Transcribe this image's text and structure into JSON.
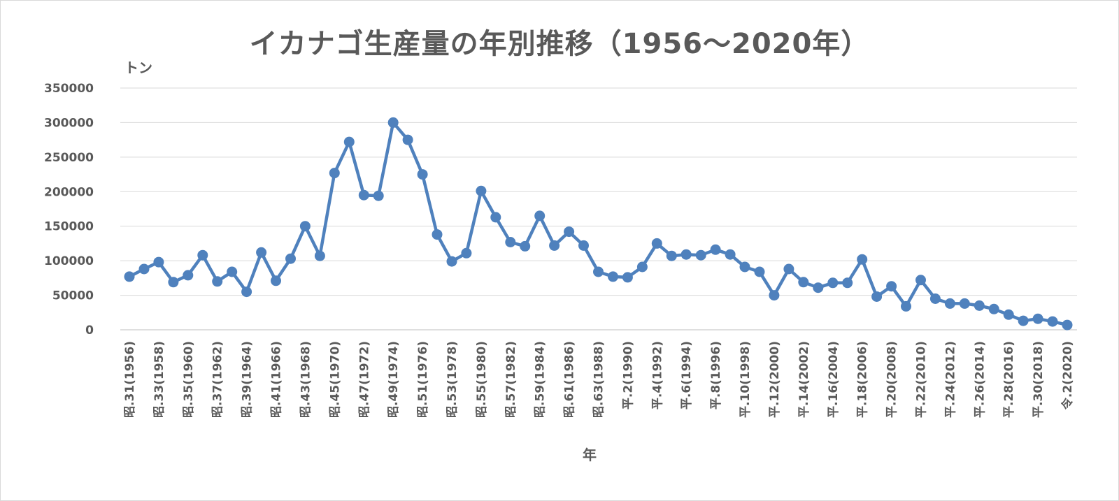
{
  "chart_data": {
    "type": "line",
    "title": "イカナゴ生産量の年別推移（1956～2020年）",
    "xlabel": "年",
    "ylabel": "トン",
    "ylim": [
      0,
      350000
    ],
    "yticks": [
      0,
      50000,
      100000,
      150000,
      200000,
      250000,
      300000,
      350000
    ],
    "grid": true,
    "legend": "none",
    "color": "#4f81bd",
    "x_tick_labels": [
      "昭.31(1956)",
      "昭.33(1958)",
      "昭.35(1960)",
      "昭.37(1962)",
      "昭.39(1964)",
      "昭.41(1966)",
      "昭.43(1968)",
      "昭.45(1970)",
      "昭.47(1972)",
      "昭.49(1974)",
      "昭.51(1976)",
      "昭.53(1978)",
      "昭.55(1980)",
      "昭.57(1982)",
      "昭.59(1984)",
      "昭.61(1986)",
      "昭.63(1988)",
      "平.2(1990)",
      "平.4(1992)",
      "平.6(1994)",
      "平.8(1996)",
      "平.10(1998)",
      "平.12(2000)",
      "平.14(2002)",
      "平.16(2004)",
      "平.18(2006)",
      "平.20(2008)",
      "平.22(2010)",
      "平.24(2012)",
      "平.26(2014)",
      "平.28(2016)",
      "平.30(2018)",
      "令.2(2020)"
    ],
    "x": [
      1956,
      1957,
      1958,
      1959,
      1960,
      1961,
      1962,
      1963,
      1964,
      1965,
      1966,
      1967,
      1968,
      1969,
      1970,
      1971,
      1972,
      1973,
      1974,
      1975,
      1976,
      1977,
      1978,
      1979,
      1980,
      1981,
      1982,
      1983,
      1984,
      1985,
      1986,
      1987,
      1988,
      1989,
      1990,
      1991,
      1992,
      1993,
      1994,
      1995,
      1996,
      1997,
      1998,
      1999,
      2000,
      2001,
      2002,
      2003,
      2004,
      2005,
      2006,
      2007,
      2008,
      2009,
      2010,
      2011,
      2012,
      2013,
      2014,
      2015,
      2016,
      2017,
      2018,
      2019,
      2020
    ],
    "series": [
      {
        "values": [
          77000,
          88000,
          98000,
          69000,
          79000,
          108000,
          70000,
          84000,
          55000,
          112000,
          71000,
          103000,
          150000,
          107000,
          227000,
          272000,
          195000,
          194000,
          300000,
          275000,
          225000,
          138000,
          99000,
          111000,
          201000,
          163000,
          127000,
          121000,
          165000,
          122000,
          142000,
          122000,
          84000,
          77000,
          76000,
          91000,
          125000,
          107000,
          109000,
          108000,
          116000,
          109000,
          91000,
          84000,
          50000,
          88000,
          69000,
          61000,
          68000,
          68000,
          102000,
          48000,
          63000,
          34000,
          72000,
          45000,
          38000,
          38000,
          35000,
          30000,
          22000,
          13000,
          16000,
          12000,
          7000
        ]
      }
    ]
  }
}
